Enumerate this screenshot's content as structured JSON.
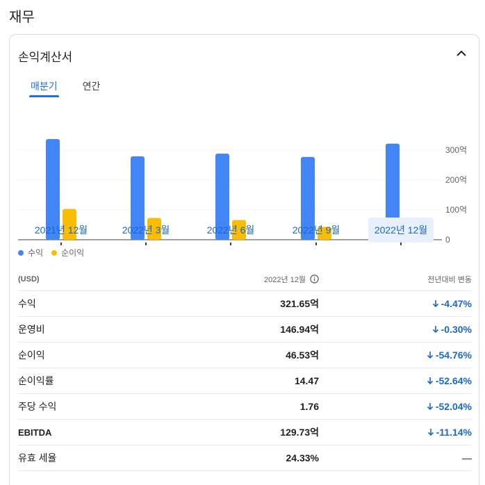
{
  "page": {
    "section_title": "재무"
  },
  "card": {
    "title": "손익계산서"
  },
  "tabs": [
    {
      "label": "매분기",
      "active": true
    },
    {
      "label": "연간",
      "active": false
    }
  ],
  "legend": [
    {
      "label": "수익",
      "color": "#4285f4"
    },
    {
      "label": "순이익",
      "color": "#fbbc04"
    }
  ],
  "y_ticks": [
    "300억",
    "200억",
    "100억",
    "0"
  ],
  "chart_data": {
    "type": "bar",
    "categories": [
      "2021년 12월",
      "2022년 3월",
      "2022년 6월",
      "2022년 9월",
      "2022년 12월"
    ],
    "series": [
      {
        "name": "수익",
        "values": [
          337,
          279,
          288,
          277,
          321.65
        ],
        "color": "#4285f4"
      },
      {
        "name": "순이익",
        "values": [
          103,
          73,
          66,
          43,
          46.53
        ],
        "color": "#fbbc04"
      }
    ],
    "ylim": [
      0,
      300
    ],
    "yticks": [
      0,
      100,
      200,
      300
    ],
    "selected_category": "2022년 12월"
  },
  "table": {
    "headers": {
      "currency": "(USD)",
      "period": "2022년 12월",
      "change": "전년대비 변동"
    },
    "rows": [
      {
        "label": "수익",
        "value": "321.65억",
        "change": "-4.47%",
        "direction": "down"
      },
      {
        "label": "운영비",
        "value": "146.94억",
        "change": "-0.30%",
        "direction": "down"
      },
      {
        "label": "순이익",
        "value": "46.53억",
        "change": "-54.76%",
        "direction": "down"
      },
      {
        "label": "순이익률",
        "value": "14.47",
        "change": "-52.64%",
        "direction": "down"
      },
      {
        "label": "주당 수익",
        "value": "1.76",
        "change": "-52.04%",
        "direction": "down"
      },
      {
        "label": "EBITDA",
        "value": "129.73억",
        "change": "-11.14%",
        "direction": "down"
      },
      {
        "label": "유효 세율",
        "value": "24.33%",
        "change": "—",
        "direction": "none"
      }
    ]
  }
}
